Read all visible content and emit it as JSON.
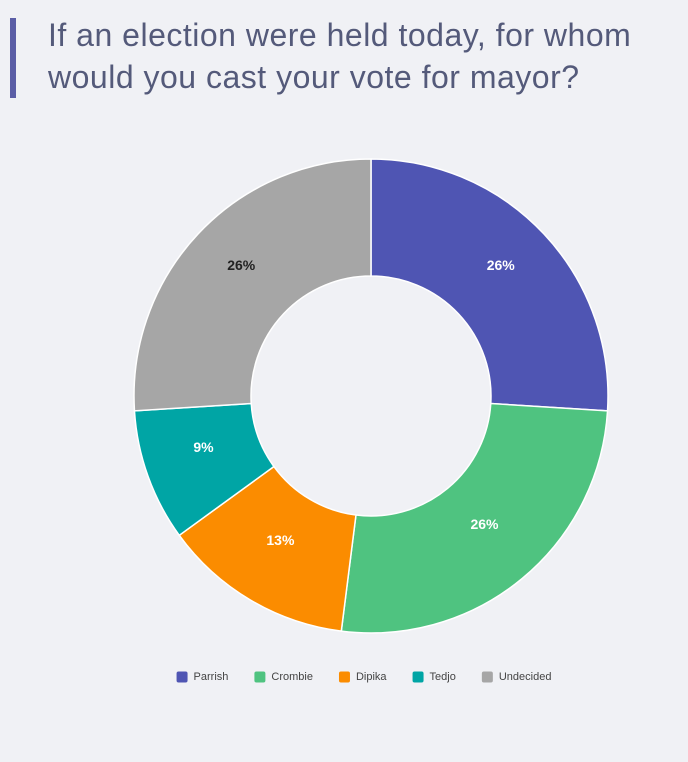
{
  "chart_data": {
    "type": "pie",
    "title": "If an election were held today, for whom would you cast your vote for mayor?",
    "categories": [
      "Parrish",
      "Crombie",
      "Dipika",
      "Tedjo",
      "Undecided"
    ],
    "values": [
      26,
      26,
      13,
      9,
      26
    ],
    "value_labels": [
      "26%",
      "26%",
      "13%",
      "9%",
      "26%"
    ],
    "colors": [
      "#4f55b3",
      "#4fc380",
      "#fb8c00",
      "#00a5a5",
      "#a6a6a6"
    ],
    "label_colors": [
      "#ffffff",
      "#ffffff",
      "#ffffff",
      "#ffffff",
      "#222222"
    ],
    "legend": "bottom"
  }
}
